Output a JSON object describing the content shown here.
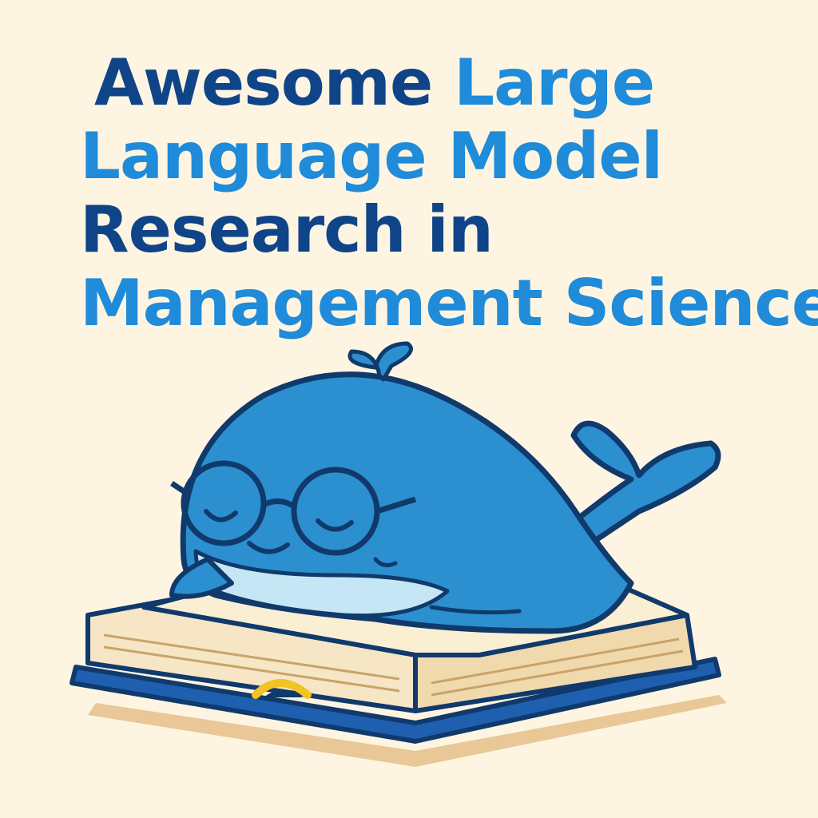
{
  "title": {
    "line1_dark": "Awesome",
    "line1_light": "Large",
    "line2_light": "Language  Model",
    "line3_dark": "Research in",
    "line4_light": "Management Science"
  },
  "colors": {
    "background": "#fdf5e2",
    "title_dark": "#0f4488",
    "title_light": "#1f8bd9",
    "whale_body": "#2c8fd0",
    "whale_belly": "#c5e6f4",
    "outline": "#103a6b",
    "book_cover": "#1f5fb0",
    "book_pages": "#f6e6c6"
  },
  "illustration": {
    "subject_icon": "whale-with-glasses-icon",
    "prop_icon": "open-book-icon"
  }
}
